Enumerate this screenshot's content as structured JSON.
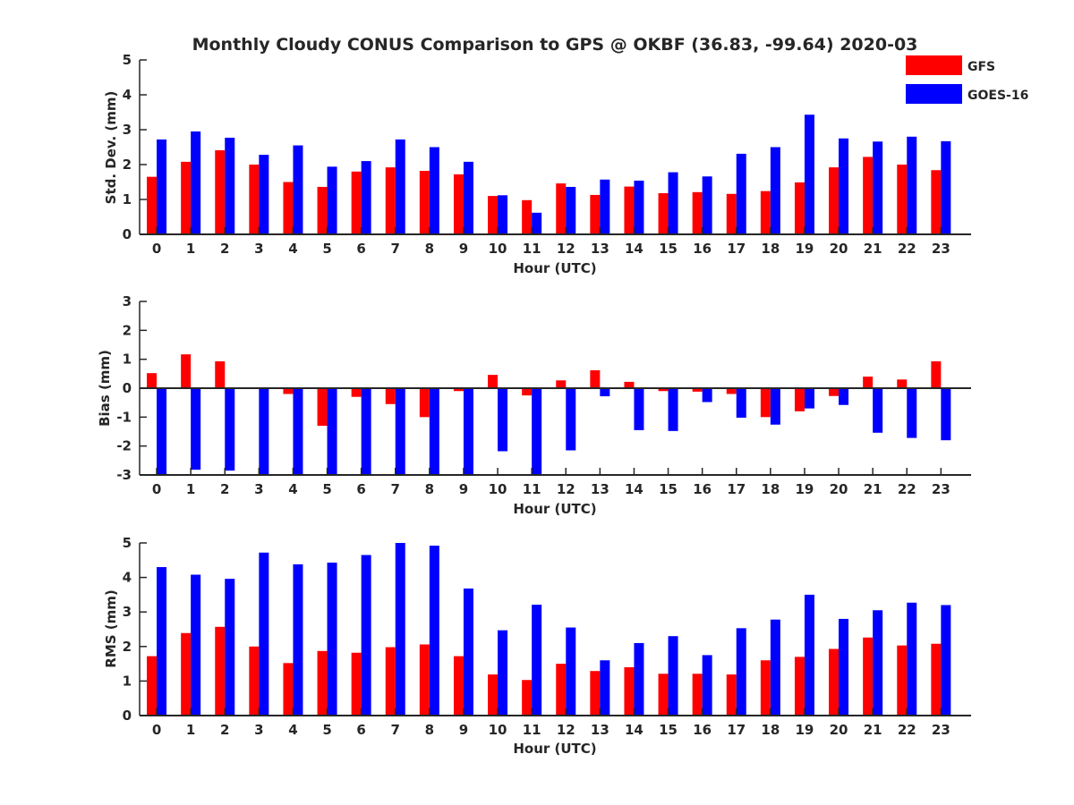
{
  "title": "Monthly Cloudy CONUS Comparison to GPS @ OKBF (36.83, -99.64) 2020-03",
  "legend": {
    "placement": "top-right",
    "items": [
      {
        "name": "GFS",
        "color": "#ff0000"
      },
      {
        "name": "GOES-16",
        "color": "#0000ff"
      }
    ]
  },
  "colors": {
    "gfs": "#ff0000",
    "goes": "#0000ff",
    "axis": "#262626"
  },
  "chart_data": [
    {
      "type": "bar",
      "xlabel": "Hour (UTC)",
      "ylabel": "Std. Dev. (mm)",
      "ylim": [
        0,
        5
      ],
      "yticks": [
        0,
        1,
        2,
        3,
        4,
        5
      ],
      "grid": false,
      "categories": [
        "0",
        "1",
        "2",
        "3",
        "4",
        "5",
        "6",
        "7",
        "8",
        "9",
        "10",
        "11",
        "12",
        "13",
        "14",
        "15",
        "16",
        "17",
        "18",
        "19",
        "20",
        "21",
        "22",
        "23"
      ],
      "series": [
        {
          "name": "GFS",
          "values": [
            1.65,
            2.08,
            2.41,
            2.0,
            1.5,
            1.36,
            1.8,
            1.92,
            1.82,
            1.72,
            1.1,
            0.98,
            1.46,
            1.13,
            1.37,
            1.18,
            1.21,
            1.16,
            1.24,
            1.49,
            1.92,
            2.22,
            2.0,
            1.84
          ]
        },
        {
          "name": "GOES-16",
          "values": [
            2.72,
            2.95,
            2.77,
            2.28,
            2.55,
            1.94,
            2.1,
            2.72,
            2.5,
            2.08,
            1.12,
            0.62,
            1.36,
            1.57,
            1.54,
            1.78,
            1.66,
            2.31,
            2.5,
            3.43,
            2.75,
            2.66,
            2.8,
            2.67
          ]
        }
      ]
    },
    {
      "type": "bar",
      "xlabel": "Hour (UTC)",
      "ylabel": "Bias (mm)",
      "ylim": [
        -3,
        3
      ],
      "yticks": [
        -3,
        -2,
        -1,
        0,
        1,
        2,
        3
      ],
      "grid": false,
      "categories": [
        "0",
        "1",
        "2",
        "3",
        "4",
        "5",
        "6",
        "7",
        "8",
        "9",
        "10",
        "11",
        "12",
        "13",
        "14",
        "15",
        "16",
        "17",
        "18",
        "19",
        "20",
        "21",
        "22",
        "23"
      ],
      "series": [
        {
          "name": "GFS",
          "values": [
            0.52,
            1.17,
            0.93,
            0.0,
            -0.2,
            -1.3,
            -0.3,
            -0.55,
            -1.0,
            -0.1,
            0.46,
            -0.25,
            0.27,
            0.62,
            0.22,
            -0.1,
            -0.12,
            -0.2,
            -1.0,
            -0.8,
            -0.27,
            0.4,
            0.3,
            0.93
          ]
        },
        {
          "name": "GOES-16",
          "values": [
            -3.0,
            -2.82,
            -2.85,
            -3.0,
            -3.0,
            -3.0,
            -3.0,
            -3.0,
            -3.0,
            -3.0,
            -2.18,
            -3.0,
            -2.15,
            -0.28,
            -1.45,
            -1.48,
            -0.48,
            -1.02,
            -1.26,
            -0.7,
            -0.58,
            -1.54,
            -1.72,
            -1.8
          ]
        }
      ]
    },
    {
      "type": "bar",
      "xlabel": "Hour (UTC)",
      "ylabel": "RMS (mm)",
      "ylim": [
        0,
        5
      ],
      "yticks": [
        0,
        1,
        2,
        3,
        4,
        5
      ],
      "grid": false,
      "categories": [
        "0",
        "1",
        "2",
        "3",
        "4",
        "5",
        "6",
        "7",
        "8",
        "9",
        "10",
        "11",
        "12",
        "13",
        "14",
        "15",
        "16",
        "17",
        "18",
        "19",
        "20",
        "21",
        "22",
        "23"
      ],
      "series": [
        {
          "name": "GFS",
          "values": [
            1.72,
            2.39,
            2.57,
            2.0,
            1.52,
            1.87,
            1.82,
            1.98,
            2.06,
            1.72,
            1.19,
            1.03,
            1.5,
            1.29,
            1.4,
            1.21,
            1.21,
            1.19,
            1.6,
            1.7,
            1.93,
            2.26,
            2.03,
            2.08
          ]
        },
        {
          "name": "GOES-16",
          "values": [
            4.3,
            4.08,
            3.96,
            4.72,
            4.38,
            4.43,
            4.65,
            5.0,
            4.92,
            3.68,
            2.47,
            3.21,
            2.55,
            1.6,
            2.1,
            2.3,
            1.75,
            2.53,
            2.78,
            3.5,
            2.8,
            3.05,
            3.27,
            3.2
          ]
        }
      ]
    }
  ]
}
